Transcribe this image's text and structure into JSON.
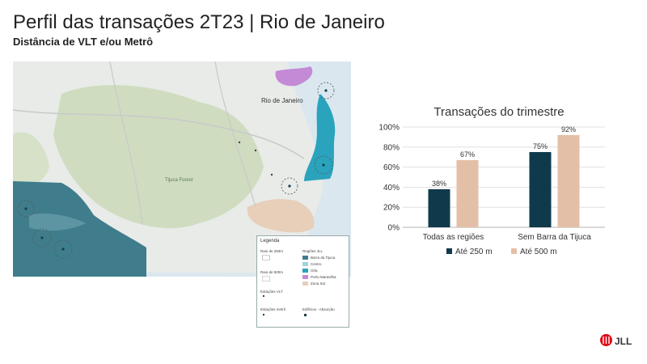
{
  "header": {
    "title": "Perfil das transações 2T23 | Rio de Janeiro",
    "subtitle": "Distância de VLT e/ou Metrô"
  },
  "map": {
    "labels": {
      "city": "Rio de Janeiro",
      "forest": "Tijuca Forest"
    },
    "legend": {
      "title": "Legenda",
      "radius_250": "Raio de 250m",
      "radius_500": "Raio de 500m",
      "stations_vlt": "Estações VLT",
      "stations_metro": "Estações metrô",
      "regions_title": "Regiões JLL",
      "regions": [
        {
          "label": "Barra da Tijuca",
          "color": "#3f7d8c"
        },
        {
          "label": "Centro",
          "color": "#9fd4dd"
        },
        {
          "label": "Orla",
          "color": "#2aa3bd"
        },
        {
          "label": "Porto Maravilha",
          "color": "#c48ad6"
        },
        {
          "label": "Zona Sul",
          "color": "#e7cfba"
        }
      ],
      "buildings": "Edifícios - Absorção"
    }
  },
  "chart_data": {
    "type": "bar",
    "title": "Transações do trimestre",
    "categories": [
      "Todas as regiões",
      "Sem Barra da Tijuca"
    ],
    "series": [
      {
        "name": "Até 250 m",
        "values": [
          38,
          75
        ],
        "color": "#0f3a4c"
      },
      {
        "name": "Até 500 m",
        "values": [
          67,
          92
        ],
        "color": "#e4bfa8"
      }
    ],
    "data_labels": [
      [
        "38%",
        "67%"
      ],
      [
        "75%",
        "92%"
      ]
    ],
    "yticks": [
      "0%",
      "20%",
      "40%",
      "60%",
      "80%",
      "100%"
    ],
    "ylim": [
      0,
      100
    ],
    "grid": true,
    "legend_position": "bottom"
  },
  "brand": {
    "logo_text": "JLL",
    "logo_color": "#e30613"
  }
}
